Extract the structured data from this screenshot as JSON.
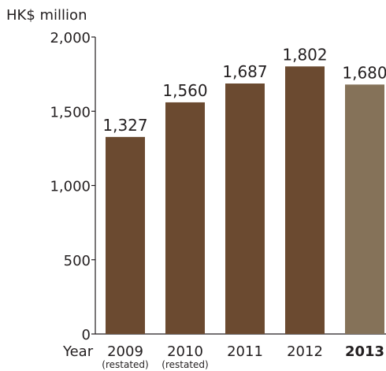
{
  "chart_data": {
    "type": "bar",
    "ylabel": "HK$ million",
    "xlabel": "Year",
    "ylim": [
      0,
      2000
    ],
    "y_ticks": [
      0,
      500,
      1000,
      1500,
      2000
    ],
    "y_tick_labels": [
      "0",
      "500",
      "1,000",
      "1,500",
      "2,000"
    ],
    "categories": [
      "2009",
      "2010",
      "2011",
      "2012",
      "2013"
    ],
    "category_notes": [
      "(restated)",
      "(restated)",
      "",
      "",
      ""
    ],
    "values": [
      1327,
      1560,
      1687,
      1802,
      1680
    ],
    "value_labels": [
      "1,327",
      "1,560",
      "1,687",
      "1,802",
      "1,680"
    ],
    "bar_colors": [
      "#6b4a30",
      "#6b4a30",
      "#6b4a30",
      "#6b4a30",
      "#857259"
    ],
    "bold_categories": [
      "2013"
    ],
    "grid": false,
    "legend": "none"
  }
}
